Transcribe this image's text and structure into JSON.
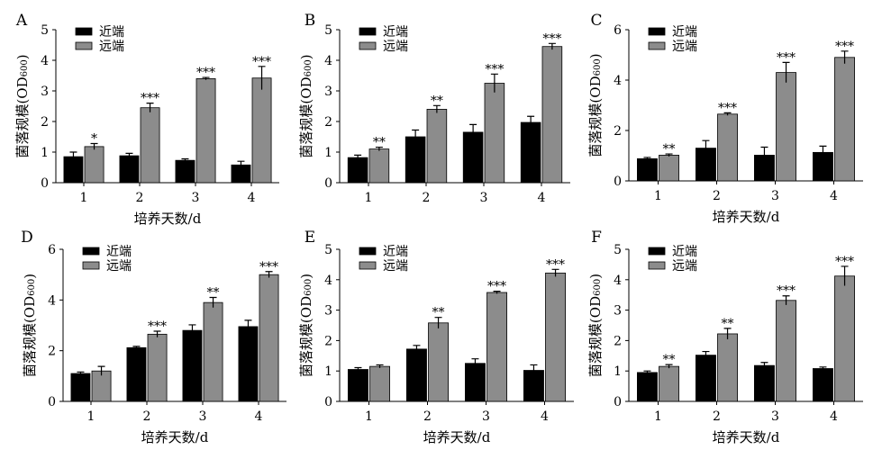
{
  "colors": {
    "near": "#000000",
    "far": "#8c8c8c"
  },
  "chart_data": [
    {
      "type": "bar",
      "panel_label": "A",
      "categories": [
        "1",
        "2",
        "3",
        "4"
      ],
      "xlabel": "培养天数/d",
      "ylabel": "菌落规模(OD600)",
      "ylim": [
        0,
        5
      ],
      "yticks": [
        0,
        1,
        2,
        3,
        4,
        5
      ],
      "legend": "top-left",
      "series": [
        {
          "name": "近端",
          "values": [
            0.85,
            0.88,
            0.73,
            0.58
          ],
          "errors": [
            0.15,
            0.08,
            0.05,
            0.12
          ]
        },
        {
          "name": "远端",
          "values": [
            1.18,
            2.45,
            3.4,
            3.42
          ],
          "errors": [
            0.1,
            0.15,
            0.04,
            0.38
          ]
        }
      ],
      "annotations": [
        "*",
        "***",
        "***",
        "***"
      ]
    },
    {
      "type": "bar",
      "panel_label": "B",
      "categories": [
        "1",
        "2",
        "3",
        "4"
      ],
      "xlabel": "",
      "ylabel": "菌落规模(OD600)",
      "ylim": [
        0,
        5
      ],
      "yticks": [
        0,
        1,
        2,
        3,
        4,
        5
      ],
      "legend": "top-left",
      "series": [
        {
          "name": "近端",
          "values": [
            0.82,
            1.5,
            1.65,
            1.97
          ],
          "errors": [
            0.08,
            0.22,
            0.25,
            0.2
          ]
        },
        {
          "name": "远端",
          "values": [
            1.1,
            2.4,
            3.25,
            4.45
          ],
          "errors": [
            0.06,
            0.12,
            0.3,
            0.1
          ]
        }
      ],
      "annotations": [
        "**",
        "**",
        "***",
        "***"
      ]
    },
    {
      "type": "bar",
      "panel_label": "C",
      "categories": [
        "1",
        "2",
        "3",
        "4"
      ],
      "xlabel": "培养天数/d",
      "ylabel": "菌落规模(OD600)",
      "ylim": [
        0,
        6
      ],
      "yticks": [
        0,
        2,
        4,
        6
      ],
      "legend": "top-left",
      "series": [
        {
          "name": "近端",
          "values": [
            0.88,
            1.3,
            1.02,
            1.13
          ],
          "errors": [
            0.05,
            0.3,
            0.32,
            0.25
          ]
        },
        {
          "name": "远端",
          "values": [
            1.02,
            2.65,
            4.3,
            4.9
          ],
          "errors": [
            0.05,
            0.05,
            0.4,
            0.25
          ]
        }
      ],
      "annotations": [
        "**",
        "***",
        "***",
        "***"
      ]
    },
    {
      "type": "bar",
      "panel_label": "D",
      "categories": [
        "1",
        "2",
        "3",
        "4"
      ],
      "xlabel": "培养天数/d",
      "ylabel": "菌落规模(OD600)",
      "ylim": [
        0,
        6
      ],
      "yticks": [
        0,
        2,
        4,
        6
      ],
      "legend": "top-left",
      "series": [
        {
          "name": "近端",
          "values": [
            1.1,
            2.12,
            2.8,
            2.95
          ],
          "errors": [
            0.06,
            0.05,
            0.22,
            0.25
          ]
        },
        {
          "name": "远端",
          "values": [
            1.2,
            2.65,
            3.9,
            5.0
          ],
          "errors": [
            0.18,
            0.12,
            0.2,
            0.12
          ]
        }
      ],
      "annotations": [
        "",
        "***",
        "**",
        "***"
      ]
    },
    {
      "type": "bar",
      "panel_label": "E",
      "categories": [
        "1",
        "2",
        "3",
        "4"
      ],
      "xlabel": "培养天数/d",
      "ylabel": "菌落规模(OD600)",
      "ylim": [
        0,
        5
      ],
      "yticks": [
        0,
        1,
        2,
        3,
        4,
        5
      ],
      "legend": "top-left",
      "series": [
        {
          "name": "近端",
          "values": [
            1.05,
            1.72,
            1.25,
            1.02
          ],
          "errors": [
            0.06,
            0.12,
            0.15,
            0.18
          ]
        },
        {
          "name": "远端",
          "values": [
            1.15,
            2.58,
            3.58,
            4.22
          ],
          "errors": [
            0.05,
            0.18,
            0.04,
            0.12
          ]
        }
      ],
      "annotations": [
        "",
        "**",
        "***",
        "***"
      ]
    },
    {
      "type": "bar",
      "panel_label": "F",
      "categories": [
        "1",
        "2",
        "3",
        "4"
      ],
      "xlabel": "培养天数/d",
      "ylabel": "菌落规模(OD600)",
      "ylim": [
        0,
        5
      ],
      "yticks": [
        0,
        1,
        2,
        3,
        4,
        5
      ],
      "legend": "top-left",
      "series": [
        {
          "name": "近端",
          "values": [
            0.95,
            1.52,
            1.18,
            1.08
          ],
          "errors": [
            0.05,
            0.12,
            0.1,
            0.05
          ]
        },
        {
          "name": "远端",
          "values": [
            1.15,
            2.22,
            3.32,
            4.12
          ],
          "errors": [
            0.06,
            0.18,
            0.15,
            0.32
          ]
        }
      ],
      "annotations": [
        "**",
        "**",
        "***",
        "***"
      ]
    }
  ]
}
